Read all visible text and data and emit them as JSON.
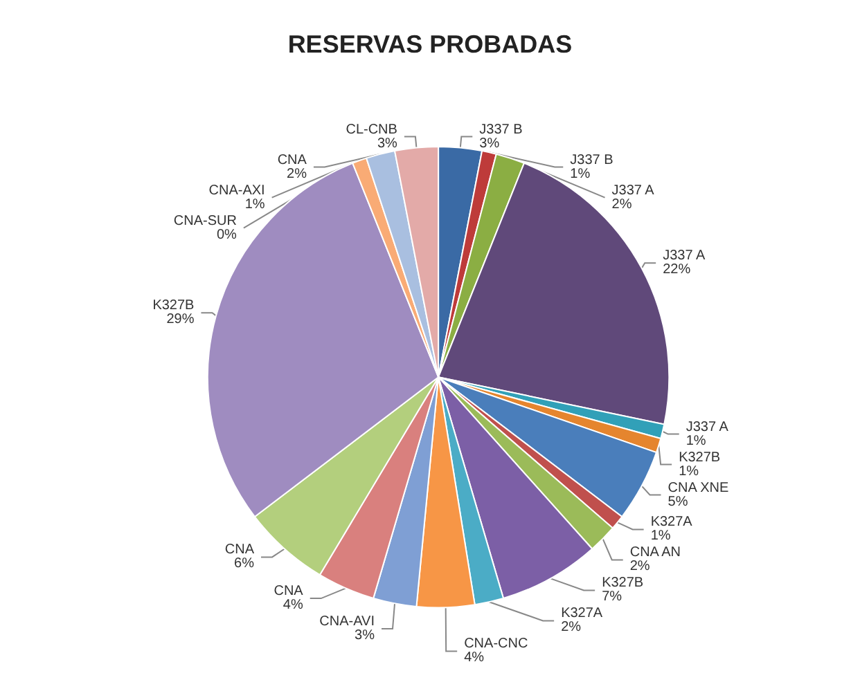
{
  "chart_data": {
    "type": "pie",
    "title": "RESERVAS PROBADAS",
    "categories": [
      "J337 B",
      "J337 B",
      "J337 A",
      "J337 A",
      "J337 A",
      "K327B",
      "CNA XNE",
      "K327A",
      "CNA AN",
      "K327B",
      "K327A",
      "CNA-CNC",
      "CNA-AVI",
      "CNA",
      "CNA",
      "K327B",
      "CNA-SUR",
      "CNA-AXI",
      "CNA",
      "CL-CNB"
    ],
    "values": [
      3,
      1,
      2,
      22,
      1,
      1,
      5,
      1,
      2,
      7,
      2,
      4,
      3,
      4,
      6,
      29,
      0,
      1,
      2,
      3
    ],
    "value_labels": [
      "3%",
      "1%",
      "2%",
      "22%",
      "1%",
      "1%",
      "5%",
      "1%",
      "2%",
      "7%",
      "2%",
      "4%",
      "3%",
      "4%",
      "6%",
      "29%",
      "0%",
      "1%",
      "2%",
      "3%"
    ],
    "colors": [
      "#3a6aa5",
      "#be3b3a",
      "#8bae43",
      "#60497a",
      "#31a0b8",
      "#e5852e",
      "#4a7ebb",
      "#c0504d",
      "#9bbb59",
      "#7c5fa6",
      "#4bacc6",
      "#f79646",
      "#7f9fd4",
      "#d9807e",
      "#b3cf7d",
      "#9f8cc0",
      "#6cc0d6",
      "#f9ab75",
      "#a9bfe0",
      "#e3aaa8"
    ],
    "legend": false
  }
}
